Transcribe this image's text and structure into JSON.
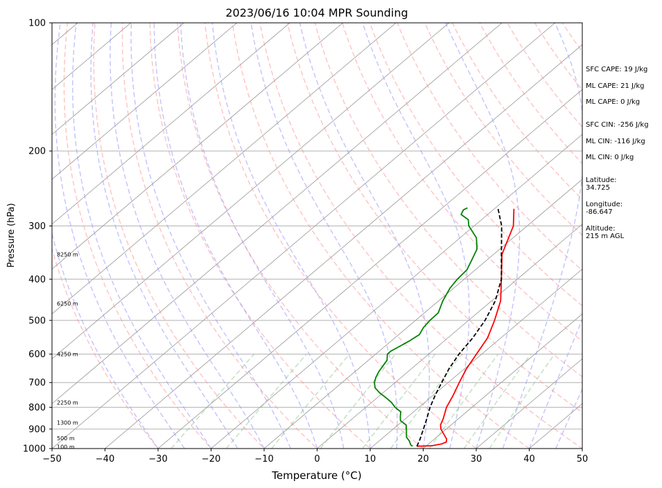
{
  "chart_data": {
    "type": "line",
    "title": "2023/06/16 10:04 MPR Sounding",
    "xlabel": "Temperature (°C)",
    "ylabel": "Pressure (hPa)",
    "xlim": [
      -50,
      50
    ],
    "ylim": [
      1000,
      100
    ],
    "y_scale": "log",
    "grid": true,
    "x_ticks": [
      "−50",
      "−40",
      "−30",
      "−20",
      "−10",
      "0",
      "10",
      "20",
      "30",
      "40",
      "50"
    ],
    "x_tick_values": [
      -50,
      -40,
      -30,
      -20,
      -10,
      0,
      10,
      20,
      30,
      40,
      50
    ],
    "y_ticks": [
      "100",
      "200",
      "300",
      "400",
      "500",
      "600",
      "700",
      "800",
      "900",
      "1000"
    ],
    "y_tick_values": [
      100,
      200,
      300,
      400,
      500,
      600,
      700,
      800,
      900,
      1000
    ],
    "height_labels": [
      {
        "p": 350,
        "text": "8250 m"
      },
      {
        "p": 456,
        "text": "6250 m"
      },
      {
        "p": 600,
        "text": "4250 m"
      },
      {
        "p": 780,
        "text": "2250 m"
      },
      {
        "p": 869,
        "text": "1300 m"
      },
      {
        "p": 945,
        "text": "500 m"
      },
      {
        "p": 990,
        "text": "100 m"
      }
    ],
    "series": [
      {
        "kind": "temperature",
        "color": "#ff0000",
        "points": [
          [
            987.7,
            18.3
          ],
          [
            985,
            21.0
          ],
          [
            975,
            22.5
          ],
          [
            965,
            22.9
          ],
          [
            950,
            22.3
          ],
          [
            930,
            21.0
          ],
          [
            900,
            19.0
          ],
          [
            880,
            18.0
          ],
          [
            850,
            17.1
          ],
          [
            800,
            15.2
          ],
          [
            750,
            13.8
          ],
          [
            700,
            12.1
          ],
          [
            650,
            10.4
          ],
          [
            600,
            9.0
          ],
          [
            550,
            7.5
          ],
          [
            500,
            4.9
          ],
          [
            450,
            1.7
          ],
          [
            400,
            -3.0
          ],
          [
            350,
            -8.4
          ],
          [
            300,
            -12.6
          ],
          [
            273.5,
            -16.3
          ]
        ]
      },
      {
        "kind": "dewpoint",
        "color": "#008000",
        "points": [
          [
            987.7,
            17.5
          ],
          [
            980,
            16.8
          ],
          [
            960,
            15.7
          ],
          [
            940,
            14.3
          ],
          [
            920,
            13.4
          ],
          [
            900,
            12.5
          ],
          [
            880,
            11.5
          ],
          [
            860,
            9.5
          ],
          [
            840,
            8.5
          ],
          [
            820,
            7.6
          ],
          [
            800,
            5.5
          ],
          [
            780,
            3.8
          ],
          [
            760,
            1.7
          ],
          [
            740,
            -0.6
          ],
          [
            720,
            -2.6
          ],
          [
            700,
            -3.9
          ],
          [
            680,
            -4.8
          ],
          [
            660,
            -5.5
          ],
          [
            640,
            -6.0
          ],
          [
            620,
            -6.5
          ],
          [
            600,
            -7.8
          ],
          [
            590,
            -7.8
          ],
          [
            580,
            -7.4
          ],
          [
            560,
            -6.6
          ],
          [
            540,
            -6.1
          ],
          [
            520,
            -6.9
          ],
          [
            500,
            -7.3
          ],
          [
            480,
            -7.4
          ],
          [
            450,
            -9.2
          ],
          [
            420,
            -10.7
          ],
          [
            400,
            -11.3
          ],
          [
            380,
            -11.6
          ],
          [
            360,
            -12.9
          ],
          [
            340,
            -14.3
          ],
          [
            320,
            -16.9
          ],
          [
            300,
            -21.0
          ],
          [
            290,
            -22.5
          ],
          [
            282,
            -25.0
          ],
          [
            275,
            -25.6
          ],
          [
            272,
            -25.3
          ]
        ]
      },
      {
        "kind": "parcel",
        "color": "#000000",
        "dashed": true,
        "points": [
          [
            987.7,
            18.3
          ],
          [
            950,
            17.3
          ],
          [
            900,
            15.7
          ],
          [
            850,
            14.0
          ],
          [
            800,
            12.1
          ],
          [
            750,
            10.4
          ],
          [
            700,
            8.8
          ],
          [
            650,
            7.1
          ],
          [
            600,
            5.7
          ],
          [
            550,
            4.7
          ],
          [
            500,
            3.1
          ],
          [
            450,
            0.7
          ],
          [
            400,
            -3.0
          ],
          [
            350,
            -8.5
          ],
          [
            300,
            -14.8
          ],
          [
            273.5,
            -19.3
          ]
        ]
      }
    ],
    "stats": {
      "sfc_cape": "SFC CAPE: 19 J/kg",
      "ml_cape": "ML CAPE: 21 J/kg",
      "mu_cape": "ML CAPE: 0 J/kg",
      "sfc_cin": "SFC CIN: -256 J/kg",
      "ml_cin": "ML CIN: -116 J/kg",
      "mu_cin": "ML CIN: 0 J/kg",
      "latitude_label": "Latitude:",
      "latitude_value": "34.725",
      "longitude_label": "Longitude:",
      "longitude_value": "-86.647",
      "altitude_label": "Altitude:",
      "altitude_value": "215 m AGL"
    },
    "colors": {
      "isotherm": "#a0a0a0",
      "dry_adiabat": "#ff9090",
      "moist_adiabat": "#9090ff",
      "mixing_ratio": "#80c080",
      "grid": "#b0b0b0"
    }
  }
}
